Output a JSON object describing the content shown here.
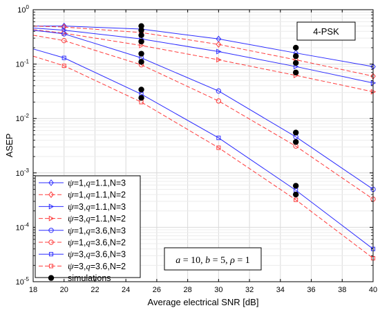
{
  "chart_data": {
    "type": "line",
    "xlabel": "Average electrical SNR [dB]",
    "ylabel": "ASEP",
    "xlim": [
      18,
      40
    ],
    "ylim_log10": [
      -5,
      0
    ],
    "y_scale": "log",
    "grid": true,
    "x_ticks": [
      "18",
      "20",
      "22",
      "24",
      "26",
      "28",
      "30",
      "32",
      "34",
      "36",
      "38",
      "40"
    ],
    "y_tick_labels": [
      {
        "base": "10",
        "exp": "0"
      },
      {
        "base": "10",
        "exp": "-1"
      },
      {
        "base": "10",
        "exp": "-2"
      },
      {
        "base": "10",
        "exp": "-3"
      },
      {
        "base": "10",
        "exp": "-4"
      },
      {
        "base": "10",
        "exp": "-5"
      }
    ],
    "legend_position": "bottom-left",
    "colors": {
      "blue": "#2b2bff",
      "red": "#ff3b3b",
      "sim": "#000000"
    },
    "series": [
      {
        "label": {
          "a": "ψ",
          "b": "=1,",
          "c": "q",
          "d": "=1.1,N=3"
        },
        "color": "#2b2bff",
        "dash": false,
        "marker": "diamond",
        "x": [
          18,
          20,
          25,
          30,
          35,
          40
        ],
        "y": [
          0.5,
          0.5,
          0.44,
          0.29,
          0.16,
          0.09
        ]
      },
      {
        "label": {
          "a": "ψ",
          "b": "=1,",
          "c": "q",
          "d": "=1.1,N=2"
        },
        "color": "#ff3b3b",
        "dash": true,
        "marker": "diamond",
        "x": [
          18,
          20,
          25,
          30,
          35,
          40
        ],
        "y": [
          0.5,
          0.48,
          0.38,
          0.23,
          0.12,
          0.06
        ]
      },
      {
        "label": {
          "a": "ψ",
          "b": "=3,",
          "c": "q",
          "d": "=1.1,N=3"
        },
        "color": "#2b2bff",
        "dash": false,
        "marker": "triangle-right",
        "x": [
          18,
          20,
          25,
          30,
          35,
          40
        ],
        "y": [
          0.46,
          0.42,
          0.29,
          0.17,
          0.09,
          0.045
        ]
      },
      {
        "label": {
          "a": "ψ",
          "b": "=3,",
          "c": "q",
          "d": "=1.1,N=2"
        },
        "color": "#ff3b3b",
        "dash": true,
        "marker": "triangle-right",
        "x": [
          18,
          20,
          25,
          30,
          35,
          40
        ],
        "y": [
          0.43,
          0.37,
          0.22,
          0.12,
          0.062,
          0.031
        ]
      },
      {
        "label": {
          "a": "ψ",
          "b": "=1,",
          "c": "q",
          "d": "=3.6,N=3"
        },
        "color": "#2b2bff",
        "dash": false,
        "marker": "circle",
        "x": [
          18,
          20,
          25,
          30,
          35,
          40
        ],
        "y": [
          0.42,
          0.36,
          0.13,
          0.032,
          0.0046,
          0.0005
        ]
      },
      {
        "label": {
          "a": "ψ",
          "b": "=1,",
          "c": "q",
          "d": "=3.6,N=2"
        },
        "color": "#ff3b3b",
        "dash": true,
        "marker": "circle",
        "x": [
          18,
          20,
          25,
          30,
          35,
          40
        ],
        "y": [
          0.34,
          0.27,
          0.097,
          0.021,
          0.0031,
          0.00033
        ]
      },
      {
        "label": {
          "a": "ψ",
          "b": "=3,",
          "c": "q",
          "d": "=3.6,N=3"
        },
        "color": "#2b2bff",
        "dash": false,
        "marker": "square",
        "x": [
          18,
          20,
          25,
          30,
          35,
          40
        ],
        "y": [
          0.19,
          0.13,
          0.028,
          0.0044,
          0.00048,
          4e-05
        ]
      },
      {
        "label": {
          "a": "ψ",
          "b": "=3,",
          "c": "q",
          "d": "=3.6,N=2"
        },
        "color": "#ff3b3b",
        "dash": true,
        "marker": "square",
        "x": [
          18,
          20,
          25,
          30,
          35,
          40
        ],
        "y": [
          0.14,
          0.093,
          0.02,
          0.0029,
          0.00032,
          2.7e-05
        ]
      }
    ],
    "simulations": {
      "label": "simulations",
      "points": [
        {
          "x": 25,
          "y": 0.5
        },
        {
          "x": 25,
          "y": 0.42
        },
        {
          "x": 25,
          "y": 0.34
        },
        {
          "x": 25,
          "y": 0.26
        },
        {
          "x": 25,
          "y": 0.155
        },
        {
          "x": 25,
          "y": 0.11
        },
        {
          "x": 25,
          "y": 0.034
        },
        {
          "x": 25,
          "y": 0.024
        },
        {
          "x": 35,
          "y": 0.2
        },
        {
          "x": 35,
          "y": 0.14
        },
        {
          "x": 35,
          "y": 0.105
        },
        {
          "x": 35,
          "y": 0.07
        },
        {
          "x": 35,
          "y": 0.0055
        },
        {
          "x": 35,
          "y": 0.0037
        },
        {
          "x": 35,
          "y": 0.00058
        },
        {
          "x": 35,
          "y": 0.0004
        }
      ]
    },
    "annotations": {
      "modulation": "4-PSK",
      "params": {
        "a_sym": "a",
        "a_val": " = 10,  ",
        "b_sym": "b",
        "b_val": " = 5,  ",
        "rho_sym": "ρ",
        "rho_val": " = 1"
      }
    }
  }
}
